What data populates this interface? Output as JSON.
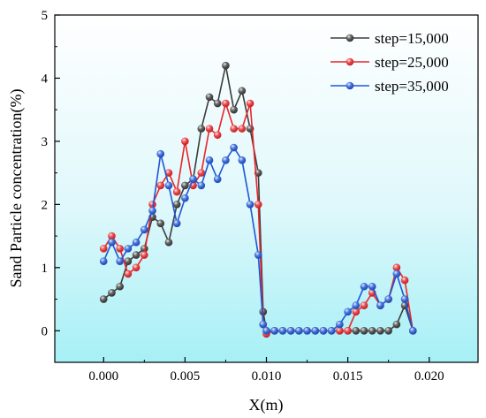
{
  "chart_data": {
    "type": "line",
    "xlabel": "X(m)",
    "ylabel": "Sand Particle concentration(%)",
    "xlim": [
      -0.003,
      0.023
    ],
    "ylim": [
      -0.5,
      5
    ],
    "xticks": [
      0.0,
      0.005,
      0.01,
      0.015,
      0.02
    ],
    "xtick_labels": [
      "0.000",
      "0.005",
      "0.010",
      "0.015",
      "0.020"
    ],
    "yticks": [
      0,
      1,
      2,
      3,
      4,
      5
    ],
    "ytick_labels": [
      "0",
      "1",
      "2",
      "3",
      "4",
      "5"
    ],
    "background": "gradient white-to-cyan (#ffffff top, #a6f0f6 bottom)",
    "legend_position": "top-right",
    "series": [
      {
        "name": "step=15,000",
        "color": "#3c3c3c",
        "x": [
          0.0,
          0.0005,
          0.001,
          0.0015,
          0.002,
          0.0025,
          0.003,
          0.0035,
          0.004,
          0.0045,
          0.005,
          0.0055,
          0.006,
          0.0065,
          0.007,
          0.0075,
          0.008,
          0.0085,
          0.009,
          0.0095,
          0.0098,
          0.01,
          0.0105,
          0.011,
          0.0115,
          0.012,
          0.0125,
          0.013,
          0.0135,
          0.014,
          0.0145,
          0.015,
          0.0155,
          0.016,
          0.0165,
          0.017,
          0.0175,
          0.018,
          0.0185,
          0.019
        ],
        "y": [
          0.5,
          0.6,
          0.7,
          1.1,
          1.2,
          1.3,
          1.8,
          1.7,
          1.4,
          2.0,
          2.3,
          2.4,
          3.2,
          3.7,
          3.6,
          4.2,
          3.5,
          3.8,
          3.2,
          2.5,
          0.3,
          0.0,
          0.0,
          0.0,
          0.0,
          0.0,
          0.0,
          0.0,
          0.0,
          0.0,
          0.0,
          0.0,
          0.0,
          0.0,
          0.0,
          0.0,
          0.0,
          0.1,
          0.4,
          0.0
        ]
      },
      {
        "name": "step=25,000",
        "color": "#e8252a",
        "x": [
          0.0,
          0.0005,
          0.001,
          0.0015,
          0.002,
          0.0025,
          0.003,
          0.0035,
          0.004,
          0.0045,
          0.005,
          0.0055,
          0.006,
          0.0065,
          0.007,
          0.0075,
          0.008,
          0.0085,
          0.009,
          0.0095,
          0.0098,
          0.01,
          0.0105,
          0.011,
          0.0115,
          0.012,
          0.0125,
          0.013,
          0.0135,
          0.014,
          0.0145,
          0.015,
          0.0155,
          0.016,
          0.0165,
          0.017,
          0.0175,
          0.018,
          0.0185,
          0.019
        ],
        "y": [
          1.3,
          1.5,
          1.3,
          0.9,
          1.0,
          1.2,
          2.0,
          2.3,
          2.5,
          2.2,
          3.0,
          2.3,
          2.5,
          3.2,
          3.1,
          3.6,
          3.2,
          3.2,
          3.6,
          2.0,
          0.1,
          -0.05,
          0.0,
          0.0,
          0.0,
          0.0,
          0.0,
          0.0,
          0.0,
          0.0,
          0.0,
          0.0,
          0.3,
          0.4,
          0.6,
          0.4,
          0.5,
          1.0,
          0.8,
          0.0
        ]
      },
      {
        "name": "step=35,000",
        "color": "#1f56d6",
        "x": [
          0.0,
          0.0005,
          0.001,
          0.0015,
          0.002,
          0.0025,
          0.003,
          0.0035,
          0.004,
          0.0045,
          0.005,
          0.0055,
          0.006,
          0.0065,
          0.007,
          0.0075,
          0.008,
          0.0085,
          0.009,
          0.0095,
          0.0098,
          0.01,
          0.0105,
          0.011,
          0.0115,
          0.012,
          0.0125,
          0.013,
          0.0135,
          0.014,
          0.0145,
          0.015,
          0.0155,
          0.016,
          0.0165,
          0.017,
          0.0175,
          0.018,
          0.0185,
          0.019
        ],
        "y": [
          1.1,
          1.4,
          1.1,
          1.3,
          1.4,
          1.6,
          1.9,
          2.8,
          2.3,
          1.7,
          2.1,
          2.4,
          2.3,
          2.7,
          2.4,
          2.7,
          2.9,
          2.7,
          2.0,
          1.2,
          0.1,
          0.0,
          0.0,
          0.0,
          0.0,
          0.0,
          0.0,
          0.0,
          0.0,
          0.0,
          0.1,
          0.3,
          0.4,
          0.7,
          0.7,
          0.4,
          0.5,
          0.9,
          0.5,
          0.0
        ]
      }
    ]
  }
}
